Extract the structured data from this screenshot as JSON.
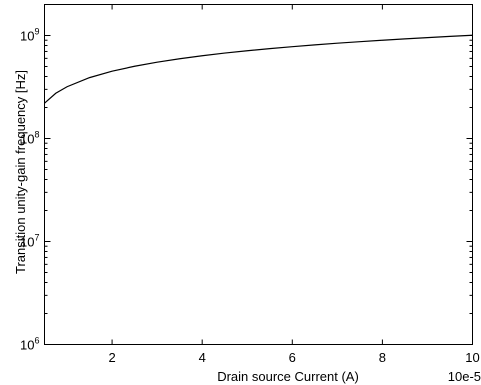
{
  "chart_data": {
    "type": "line",
    "title": "",
    "xlabel": "Drain source Current (A)",
    "ylabel": "Transition unity-gain frequency [Hz]",
    "x_multiplier_label": "10e-5",
    "xlim": [
      0.5,
      10
    ],
    "ylim": [
      1000000,
      2000000000
    ],
    "y_scale": "log",
    "grid": false,
    "x_ticks": [
      {
        "value": 2,
        "label": "2"
      },
      {
        "value": 4,
        "label": "4"
      },
      {
        "value": 6,
        "label": "6"
      },
      {
        "value": 8,
        "label": "8"
      },
      {
        "value": 10,
        "label": "10"
      }
    ],
    "y_ticks": [
      {
        "value": 1000000,
        "base": "10",
        "exp": "6"
      },
      {
        "value": 10000000,
        "base": "10",
        "exp": "7"
      },
      {
        "value": 100000000,
        "base": "10",
        "exp": "8"
      },
      {
        "value": 1000000000,
        "base": "10",
        "exp": "9"
      }
    ],
    "series": [
      {
        "color": "#000000",
        "x": [
          0.5,
          0.75,
          1,
          1.5,
          2,
          2.5,
          3,
          3.5,
          4,
          4.5,
          5,
          5.5,
          6,
          6.5,
          7,
          7.5,
          8,
          8.5,
          9,
          9.5,
          10
        ],
        "y": [
          220000000,
          275000000,
          318000000,
          390000000,
          450000000,
          503000000,
          551000000,
          595000000,
          636000000,
          675000000,
          711000000,
          746000000,
          779000000,
          811000000,
          842000000,
          871000000,
          900000000,
          927000000,
          954000000,
          980000000,
          1006000000
        ]
      }
    ]
  }
}
